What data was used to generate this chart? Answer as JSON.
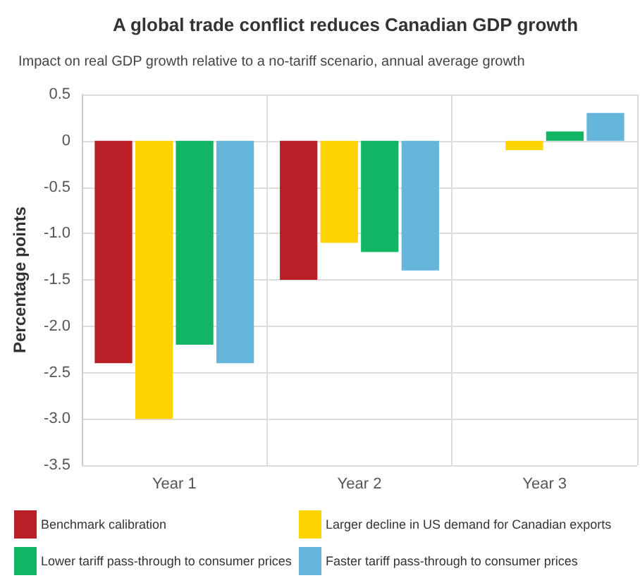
{
  "chart_data": {
    "type": "bar",
    "title": "A global trade conflict reduces Canadian GDP growth",
    "subtitle": "Impact on real GDP growth relative to a no-tariff scenario, annual average growth",
    "ylabel": "Percentage points",
    "categories": [
      "Year 1",
      "Year 2",
      "Year 3"
    ],
    "series": [
      {
        "name": "Benchmark calibration",
        "color": "#b82025",
        "values": [
          -2.4,
          -1.5,
          0
        ]
      },
      {
        "name": "Larger decline in US demand for Canadian exports",
        "color": "#fdd300",
        "values": [
          -3.0,
          -1.1,
          -0.1
        ]
      },
      {
        "name": "Lower tariff pass-through to consumer prices",
        "color": "#12b563",
        "values": [
          -2.2,
          -1.2,
          0.1
        ]
      },
      {
        "name": "Faster tariff pass-through to consumer prices",
        "color": "#66b6db",
        "values": [
          -2.4,
          -1.4,
          0.3
        ]
      }
    ],
    "ylim": [
      -3.5,
      0.5
    ],
    "yticks": [
      -3.5,
      {
        "value": -3,
        "label": "-3.0"
      },
      -2.5,
      {
        "value": -2,
        "label": "-2.0"
      },
      -1.5,
      {
        "value": -1,
        "label": "-1.0"
      },
      -0.5,
      0,
      0.5
    ],
    "grid": true,
    "legend": "bottom"
  }
}
